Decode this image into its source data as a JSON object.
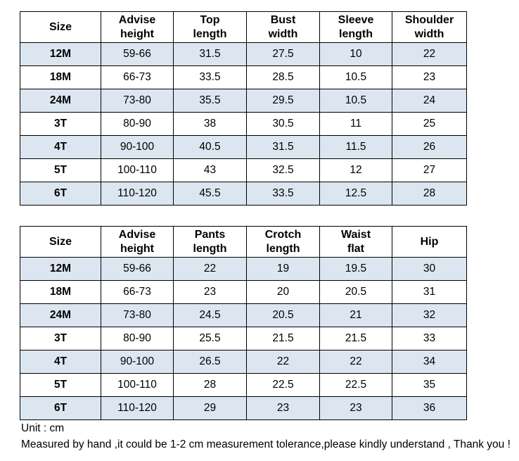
{
  "top_table": {
    "headers": [
      {
        "line1": "Size",
        "line2": ""
      },
      {
        "line1": "Advise",
        "line2": "height"
      },
      {
        "line1": "Top",
        "line2": "length"
      },
      {
        "line1": "Bust",
        "line2": "width"
      },
      {
        "line1": "Sleeve",
        "line2": "length"
      },
      {
        "line1": "Shoulder",
        "line2": "width"
      }
    ],
    "rows": [
      [
        "12M",
        "59-66",
        "31.5",
        "27.5",
        "10",
        "22"
      ],
      [
        "18M",
        "66-73",
        "33.5",
        "28.5",
        "10.5",
        "23"
      ],
      [
        "24M",
        "73-80",
        "35.5",
        "29.5",
        "10.5",
        "24"
      ],
      [
        "3T",
        "80-90",
        "38",
        "30.5",
        "11",
        "25"
      ],
      [
        "4T",
        "90-100",
        "40.5",
        "31.5",
        "11.5",
        "26"
      ],
      [
        "5T",
        "100-110",
        "43",
        "32.5",
        "12",
        "27"
      ],
      [
        "6T",
        "110-120",
        "45.5",
        "33.5",
        "12.5",
        "28"
      ]
    ]
  },
  "bottom_table": {
    "headers": [
      {
        "line1": "Size",
        "line2": ""
      },
      {
        "line1": "Advise",
        "line2": "height"
      },
      {
        "line1": "Pants",
        "line2": "length"
      },
      {
        "line1": "Crotch",
        "line2": "length"
      },
      {
        "line1": "Waist",
        "line2": "flat"
      },
      {
        "line1": "Hip",
        "line2": ""
      }
    ],
    "rows": [
      [
        "12M",
        "59-66",
        "22",
        "19",
        "19.5",
        "30"
      ],
      [
        "18M",
        "66-73",
        "23",
        "20",
        "20.5",
        "31"
      ],
      [
        "24M",
        "73-80",
        "24.5",
        "20.5",
        "21",
        "32"
      ],
      [
        "3T",
        "80-90",
        "25.5",
        "21.5",
        "21.5",
        "33"
      ],
      [
        "4T",
        "90-100",
        "26.5",
        "22",
        "22",
        "34"
      ],
      [
        "5T",
        "100-110",
        "28",
        "22.5",
        "22.5",
        "35"
      ],
      [
        "6T",
        "110-120",
        "29",
        "23",
        "23",
        "36"
      ]
    ]
  },
  "notes": {
    "unit": "Unit : cm",
    "tolerance": "Measured by hand ,it could be 1-2 cm measurement tolerance,please kindly understand , Thank you !"
  },
  "colors": {
    "shaded_row": "#dce6f1",
    "border": "#000000"
  }
}
